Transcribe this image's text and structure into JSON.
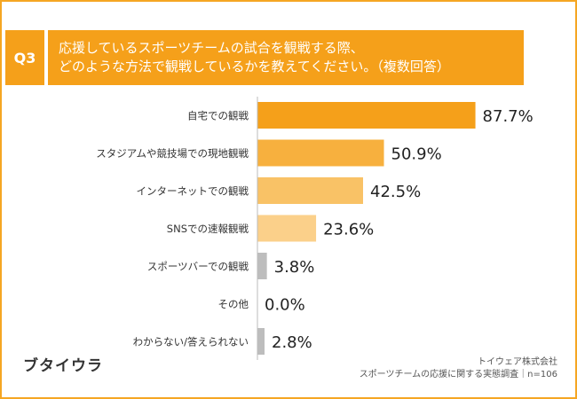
{
  "question": {
    "badge": "Q3",
    "title_lines": [
      "応援しているスポーツチームの試合を観戦する際、",
      "どのような方法で観戦しているかを教えてください。（複数回答）"
    ]
  },
  "chart_data": {
    "type": "bar",
    "orientation": "horizontal",
    "categories": [
      "自宅での観戦",
      "スタジアムや競技場での現地観戦",
      "インターネットでの観戦",
      "SNSでの速報観戦",
      "スポーツバーでの観戦",
      "その他",
      "わからない/答えられない"
    ],
    "values": [
      87.7,
      50.9,
      42.5,
      23.6,
      3.8,
      0.0,
      2.8
    ],
    "data_labels": [
      "87.7%",
      "50.9%",
      "42.5%",
      "23.6%",
      "3.8%",
      "0.0%",
      "2.8%"
    ],
    "bar_colors": [
      "#f5a01a",
      "#f7b03e",
      "#f9c266",
      "#fbd08a",
      "#bdbdbd",
      "#bdbdbd",
      "#bdbdbd"
    ],
    "xlim": [
      0,
      100
    ],
    "grid": false,
    "title": "",
    "xlabel": "",
    "ylabel": ""
  },
  "logo": "ブタイウラ",
  "source_lines": [
    "トイウェア株式会社",
    "スポーツチームの応援に関する実態調査｜n=106"
  ],
  "colors": {
    "accent": "#f5a01a",
    "frame": "#f5a623"
  }
}
